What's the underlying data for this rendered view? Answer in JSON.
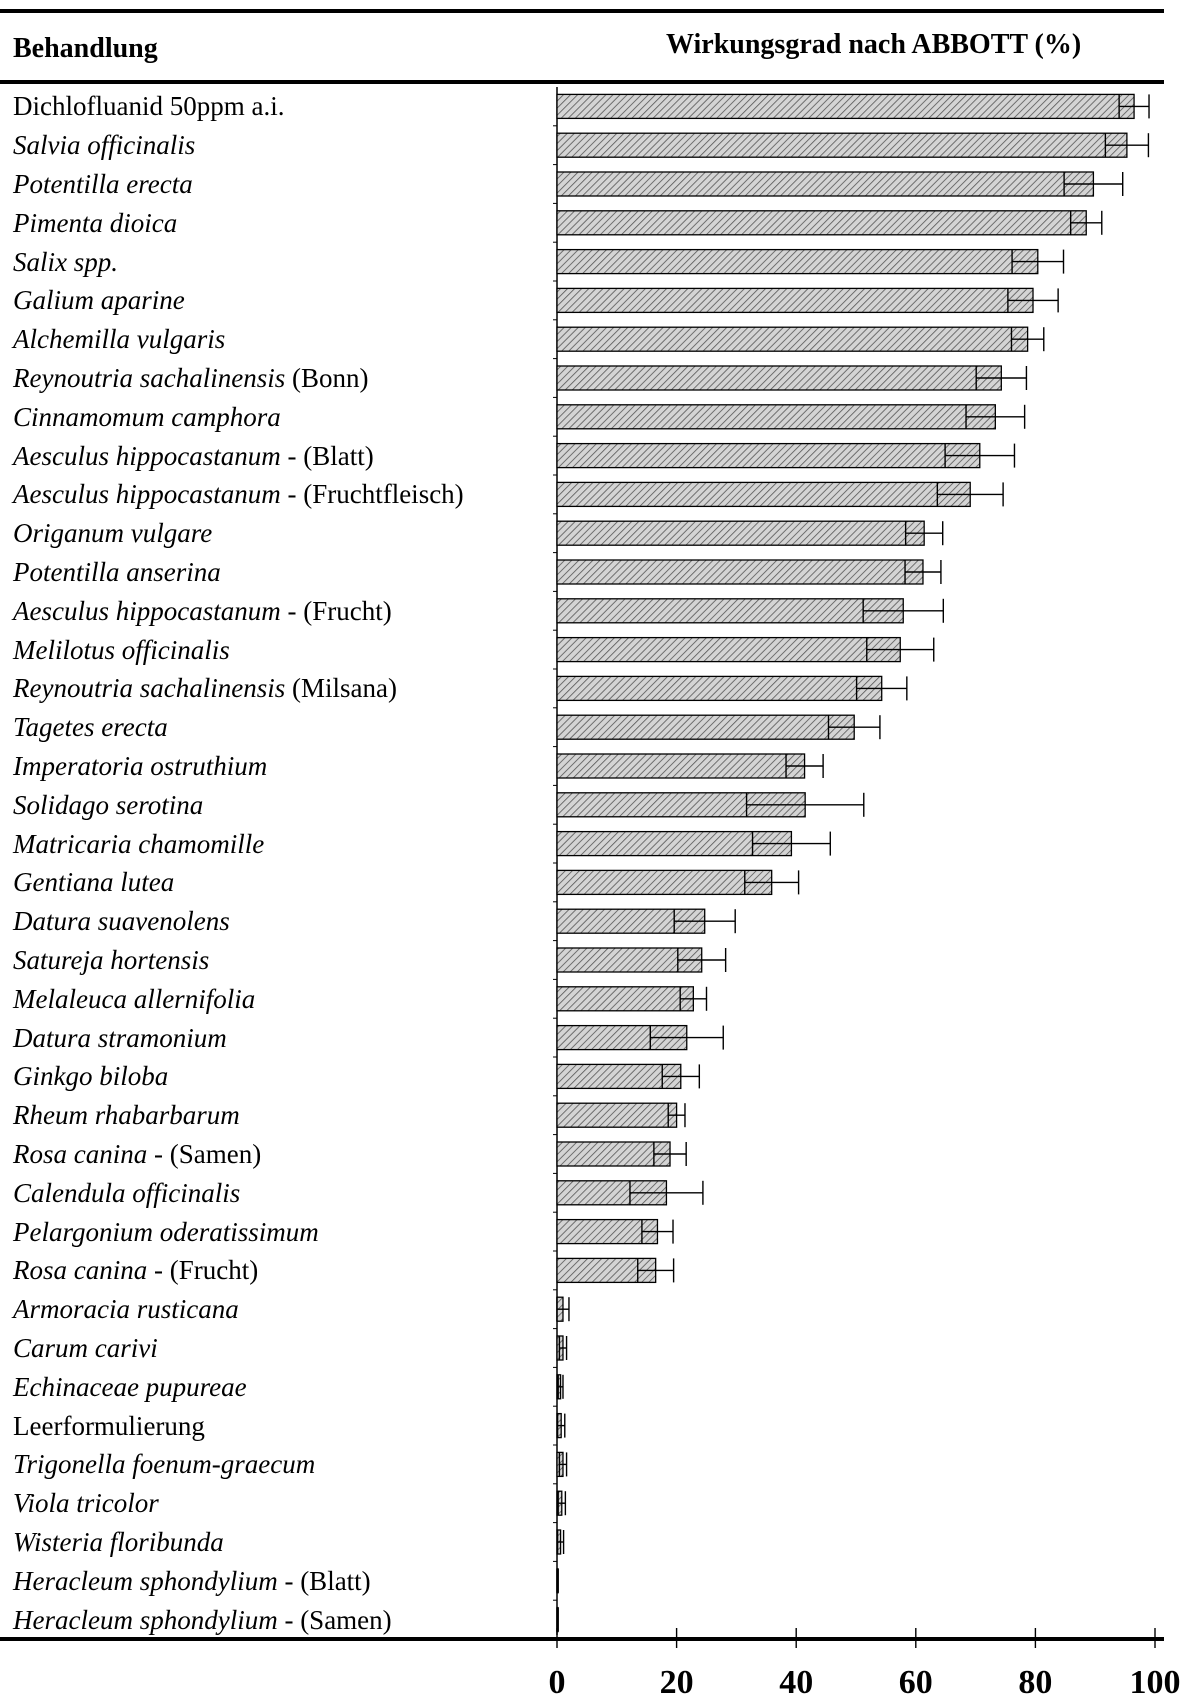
{
  "header": {
    "left": "Behandlung",
    "right": "Wirkungsgrad nach ABBOTT (%)"
  },
  "rows": [
    {
      "italic": "",
      "plain": "Dichlofluanid 50ppm a.i."
    },
    {
      "italic": "Salvia officinalis",
      "plain": ""
    },
    {
      "italic": "Potentilla erecta",
      "plain": ""
    },
    {
      "italic": "Pimenta dioica",
      "plain": ""
    },
    {
      "italic": "Salix spp.",
      "plain": ""
    },
    {
      "italic": "Galium aparine",
      "plain": ""
    },
    {
      "italic": "Alchemilla vulgaris",
      "plain": ""
    },
    {
      "italic": "Reynoutria sachalinensis",
      "plain": " (Bonn)"
    },
    {
      "italic": "Cinnamomum camphora",
      "plain": ""
    },
    {
      "italic": "Aesculus hippocastanum",
      "plain": " - (Blatt)"
    },
    {
      "italic": "Aesculus hippocastanum",
      "plain": " - (Fruchtfleisch)"
    },
    {
      "italic": "Origanum vulgare",
      "plain": ""
    },
    {
      "italic": "Potentilla anserina",
      "plain": ""
    },
    {
      "italic": "Aesculus hippocastanum",
      "plain": " - (Frucht)"
    },
    {
      "italic": "Melilotus officinalis",
      "plain": ""
    },
    {
      "italic": "Reynoutria sachalinensis",
      "plain": " (Milsana)"
    },
    {
      "italic": "Tagetes erecta",
      "plain": ""
    },
    {
      "italic": "Imperatoria ostruthium",
      "plain": ""
    },
    {
      "italic": "Solidago serotina",
      "plain": ""
    },
    {
      "italic": "Matricaria chamomille",
      "plain": ""
    },
    {
      "italic": "Gentiana lutea",
      "plain": ""
    },
    {
      "italic": "Datura suavenolens",
      "plain": ""
    },
    {
      "italic": "Satureja hortensis",
      "plain": ""
    },
    {
      "italic": "Melaleuca allernifolia",
      "plain": ""
    },
    {
      "italic": "Datura stramonium",
      "plain": ""
    },
    {
      "italic": "Ginkgo biloba",
      "plain": ""
    },
    {
      "italic": "Rheum rhabarbarum",
      "plain": ""
    },
    {
      "italic": "Rosa canina",
      "plain": " - (Samen)"
    },
    {
      "italic": "Calendula officinalis",
      "plain": ""
    },
    {
      "italic": "Pelargonium oderatissimum",
      "plain": ""
    },
    {
      "italic": "Rosa canina",
      "plain": " - (Frucht)"
    },
    {
      "italic": "Armoracia rusticana",
      "plain": ""
    },
    {
      "italic": "Carum carivi",
      "plain": ""
    },
    {
      "italic": "Echinaceae pupureae",
      "plain": ""
    },
    {
      "italic": "",
      "plain": "Leerformulierung"
    },
    {
      "italic": "Trigonella foenum-graecum",
      "plain": ""
    },
    {
      "italic": "Viola tricolor",
      "plain": ""
    },
    {
      "italic": "Wisteria floribunda",
      "plain": ""
    },
    {
      "italic": "Heracleum sphondylium",
      "plain": " - (Blatt)"
    },
    {
      "italic": "Heracleum sphondylium",
      "plain": " - (Samen)"
    }
  ],
  "chart_data": {
    "type": "bar",
    "orientation": "horizontal",
    "categories": [
      "Dichlofluanid 50ppm a.i.",
      "Salvia officinalis",
      "Potentilla erecta",
      "Pimenta dioica",
      "Salix spp.",
      "Galium aparine",
      "Alchemilla vulgaris",
      "Reynoutria sachalinensis (Bonn)",
      "Cinnamomum camphora",
      "Aesculus hippocastanum - (Blatt)",
      "Aesculus hippocastanum - (Fruchtfleisch)",
      "Origanum vulgare",
      "Potentilla anserina",
      "Aesculus hippocastanum - (Frucht)",
      "Melilotus officinalis",
      "Reynoutria sachalinensis (Milsana)",
      "Tagetes erecta",
      "Imperatoria ostruthium",
      "Solidago serotina",
      "Matricaria chamomille",
      "Gentiana lutea",
      "Datura suavenolens",
      "Satureja hortensis",
      "Melaleuca allernifolia",
      "Datura stramonium",
      "Ginkgo biloba",
      "Rheum rhabarbarum",
      "Rosa canina - (Samen)",
      "Calendula officinalis",
      "Pelargonium oderatissimum",
      "Rosa canina - (Frucht)",
      "Armoracia rusticana",
      "Carum carivi",
      "Echinaceae pupureae",
      "Leerformulierung",
      "Trigonella foenum-graecum",
      "Viola tricolor",
      "Wisteria floribunda",
      "Heracleum sphondylium - (Blatt)",
      "Heracleum sphondylium - (Samen)"
    ],
    "values": [
      96.5,
      95.3,
      89.7,
      88.5,
      80.4,
      79.6,
      78.7,
      74.3,
      73.3,
      70.7,
      69.1,
      61.4,
      61.2,
      57.9,
      57.4,
      54.3,
      49.7,
      41.4,
      41.5,
      39.2,
      35.9,
      24.7,
      24.2,
      22.8,
      21.7,
      20.7,
      20.0,
      18.9,
      18.3,
      16.8,
      16.5,
      1.0,
      1.0,
      0.6,
      0.7,
      1.0,
      0.8,
      0.6,
      0.1,
      0.1
    ],
    "errors": [
      2.5,
      3.6,
      4.9,
      2.6,
      4.3,
      4.2,
      2.7,
      4.2,
      4.9,
      5.8,
      5.5,
      3.1,
      3.0,
      6.7,
      5.6,
      4.2,
      4.3,
      3.1,
      9.8,
      6.5,
      4.5,
      5.1,
      4.0,
      2.2,
      6.1,
      3.1,
      1.4,
      2.7,
      6.1,
      2.6,
      3.0,
      1.0,
      0.6,
      0.4,
      0.6,
      0.6,
      0.6,
      0.5,
      0.1,
      0.1
    ],
    "xlabel": "",
    "ylabel": "",
    "xlim": [
      0,
      100
    ],
    "xticks": [
      0,
      20,
      40,
      60,
      80,
      100
    ],
    "grid": false,
    "bar_fill": "#d4d4d4",
    "bar_hatch": "#555555",
    "bar_stroke": "#000000"
  }
}
